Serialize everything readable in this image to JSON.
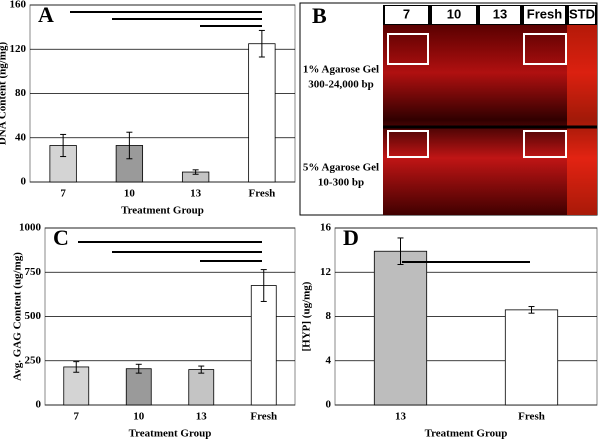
{
  "chart_data": [
    {
      "type": "bar",
      "panel_label": "A",
      "y_label": "DNA Content (ng/mg)",
      "x_label": "Treatment Group",
      "categories": [
        "7",
        "10",
        "13",
        "Fresh"
      ],
      "values": [
        33,
        33,
        9,
        125
      ],
      "errors": [
        10,
        12,
        2,
        12
      ],
      "colors": [
        "#d4d4d4",
        "#9a9a9a",
        "#c4c4c4",
        "#ffffff"
      ],
      "ylim": [
        0,
        160
      ],
      "yticks": [
        0,
        40,
        80,
        120,
        160
      ],
      "grid": true
    },
    {
      "type": "bar",
      "panel_label": "C",
      "y_label": "Avg. GAG Content (ug/mg)",
      "x_label": "Treatment Group",
      "categories": [
        "7",
        "10",
        "13",
        "Fresh"
      ],
      "values": [
        215,
        205,
        200,
        675
      ],
      "errors": [
        30,
        25,
        20,
        90
      ],
      "colors": [
        "#d4d4d4",
        "#9a9a9a",
        "#c4c4c4",
        "#ffffff"
      ],
      "ylim": [
        0,
        1000
      ],
      "yticks": [
        0,
        250,
        500,
        750,
        1000
      ],
      "grid": true
    },
    {
      "type": "bar",
      "panel_label": "D",
      "y_label": "[HYP] (ug/mg)",
      "x_label": "Treatment Group",
      "categories": [
        "13",
        "Fresh"
      ],
      "values": [
        13.9,
        8.6
      ],
      "errors": [
        1.2,
        0.3
      ],
      "colors": [
        "#bdbdbd",
        "#ffffff"
      ],
      "ylim": [
        0,
        16
      ],
      "yticks": [
        0,
        4,
        8,
        12,
        16
      ],
      "grid": true
    }
  ],
  "gel": {
    "panel_label": "B",
    "lanes": [
      "7",
      "10",
      "13",
      "Fresh",
      "STD"
    ],
    "rows": [
      {
        "line1": "1% Agarose Gel",
        "line2": "300-24,000 bp"
      },
      {
        "line1": "5% Agarose Gel",
        "line2": "10-300 bp"
      }
    ]
  }
}
